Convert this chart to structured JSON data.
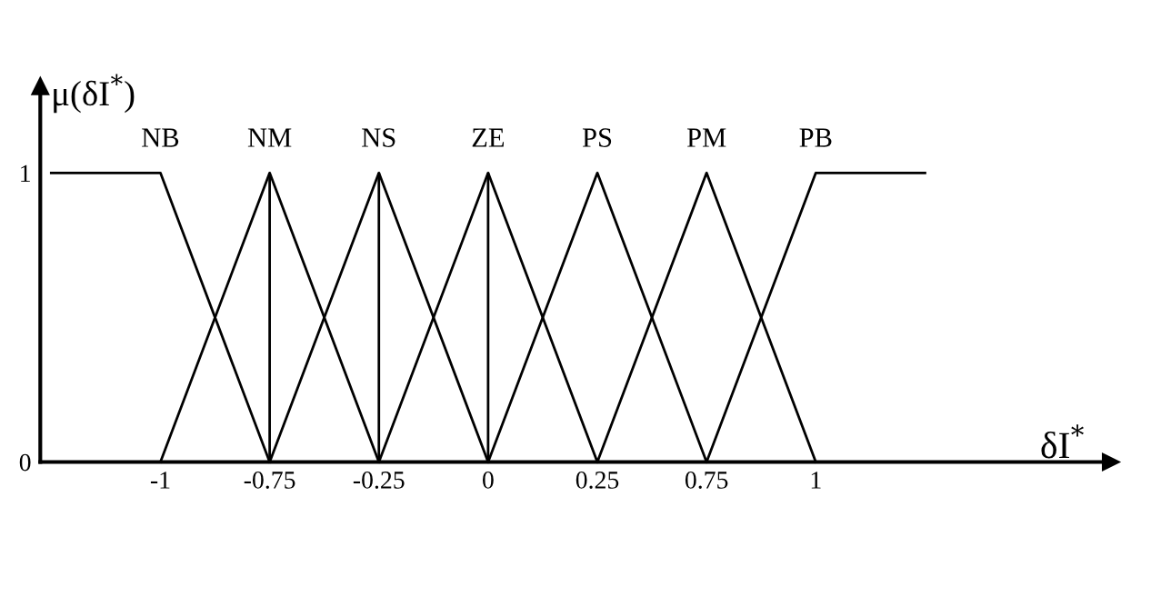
{
  "chart_data": {
    "type": "line",
    "ylabel": "μ(δI$^{*}$)",
    "xlabel": "δI$^{*}$",
    "categories": [
      null,
      "-1",
      "-0.75",
      "-0.25",
      "0",
      "0.25",
      "0.75",
      "1",
      null
    ],
    "series": [
      {
        "name": "NB",
        "color": "#000000",
        "values": [
          1,
          1,
          0,
          null,
          null,
          null,
          null,
          null,
          null
        ]
      },
      {
        "name": "NM",
        "color": "#000000",
        "values": [
          null,
          0,
          1,
          0,
          null,
          null,
          null,
          null,
          null
        ]
      },
      {
        "name": "NS",
        "color": "#000000",
        "values": [
          null,
          null,
          0,
          1,
          0,
          null,
          null,
          null,
          null
        ]
      },
      {
        "name": "ZE",
        "color": "#000000",
        "values": [
          null,
          null,
          null,
          0,
          1,
          0,
          null,
          null,
          null
        ]
      },
      {
        "name": "PS",
        "color": "#000000",
        "values": [
          null,
          null,
          null,
          null,
          0,
          1,
          0,
          null,
          null
        ]
      },
      {
        "name": "PM",
        "color": "#000000",
        "values": [
          null,
          null,
          null,
          null,
          null,
          0,
          1,
          0,
          null
        ]
      },
      {
        "name": "PB",
        "color": "#000000",
        "values": [
          null,
          null,
          null,
          null,
          null,
          null,
          0,
          1,
          1
        ]
      }
    ],
    "ref_lines": [
      {
        "axis": "x",
        "value": "-0.75",
        "color": "#000000",
        "line_style": "solid"
      },
      {
        "axis": "x",
        "value": "-0.25",
        "color": "#000000",
        "line_style": "solid"
      },
      {
        "axis": "x",
        "value": "0",
        "color": "#000000",
        "line_style": "solid"
      }
    ],
    "ylim": [
      0,
      1.3
    ],
    "yticks": [
      0,
      1
    ],
    "grid": false,
    "legend": false,
    "marker": "none",
    "line_style": "solid"
  }
}
